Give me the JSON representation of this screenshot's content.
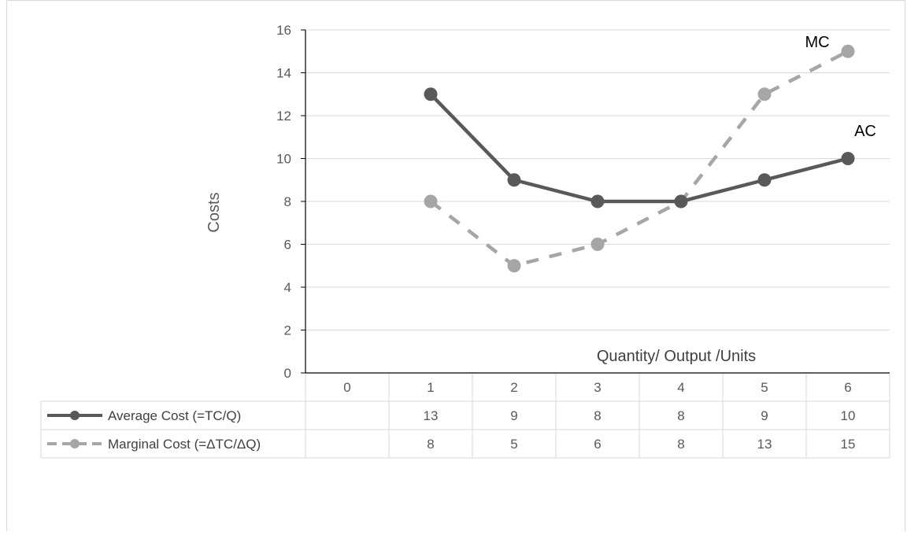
{
  "chart_data": {
    "type": "line",
    "title": "",
    "xlabel": "Quantity/ Output /Units",
    "ylabel": "Costs",
    "categories": [
      "0",
      "1",
      "2",
      "3",
      "4",
      "5",
      "6"
    ],
    "ylim": [
      0,
      16
    ],
    "yticks": [
      0,
      2,
      4,
      6,
      8,
      10,
      12,
      14,
      16
    ],
    "grid": true,
    "legend_placement": "data-table-below",
    "series": [
      {
        "name": "Average Cost (=TC/Q)",
        "label": "AC",
        "values": [
          null,
          13,
          9,
          8,
          8,
          9,
          10
        ],
        "style": "solid",
        "color": "#595959"
      },
      {
        "name": "Marginal Cost (=ΔTC/ΔQ)",
        "label": "MC",
        "values": [
          null,
          8,
          5,
          6,
          8,
          13,
          15
        ],
        "style": "dashed",
        "color": "#a6a6a6"
      }
    ]
  },
  "colors": {
    "grid": "#d9d9d9",
    "axis": "#000000",
    "tick_text": "#595959",
    "table_border": "#d9d9d9"
  }
}
